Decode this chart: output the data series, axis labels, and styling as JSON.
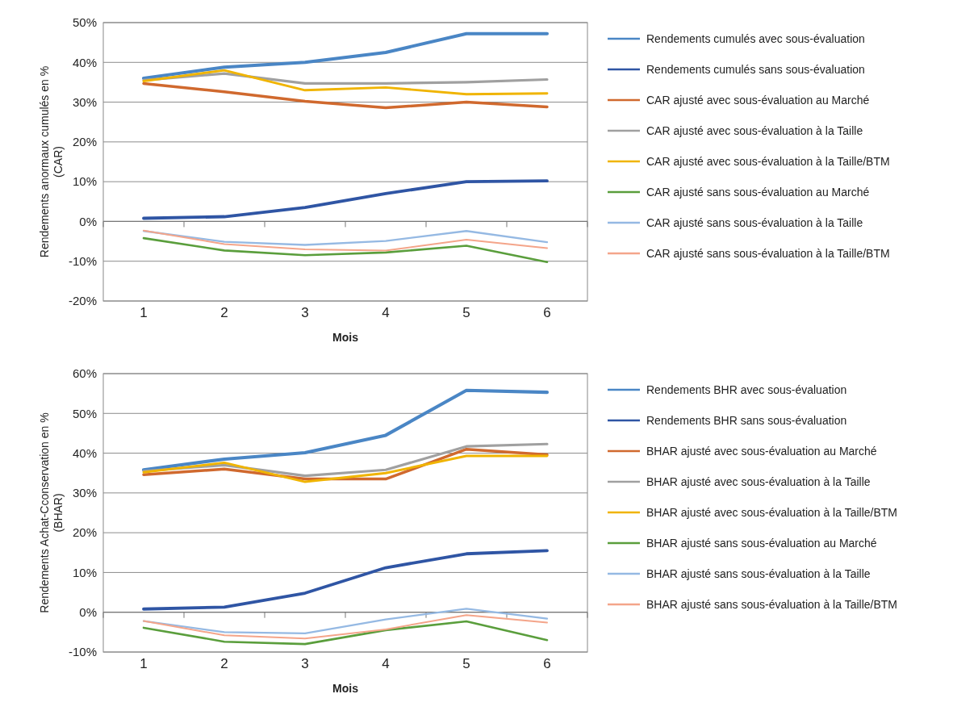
{
  "chart_data": [
    {
      "type": "line",
      "xlabel": "Mois",
      "ylabel": "Rendements anormaux cumulés  en %\n(CAR)",
      "categories": [
        "1",
        "2",
        "3",
        "4",
        "5",
        "6"
      ],
      "ylim": [
        -20,
        50
      ],
      "yticks": [
        {
          "value": -20,
          "label": "-20%"
        },
        {
          "value": -10,
          "label": "-10%"
        },
        {
          "value": 0,
          "label": "0%"
        },
        {
          "value": 10,
          "label": "10%"
        },
        {
          "value": 20,
          "label": "20%"
        },
        {
          "value": 30,
          "label": "30%"
        },
        {
          "value": 40,
          "label": "40%"
        },
        {
          "value": 50,
          "label": "50%"
        }
      ],
      "grid": "y",
      "legend": "right",
      "series": [
        {
          "name": "Rendements cumulés avec sous-évaluation",
          "color": "#4a86c5",
          "values": [
            36,
            38.8,
            40,
            42.5,
            47.2,
            47.2
          ]
        },
        {
          "name": "Rendements cumulés sans sous-évaluation",
          "color": "#2f55a4",
          "values": [
            0.8,
            1.2,
            3.5,
            7,
            10,
            10.2
          ]
        },
        {
          "name": "CAR ajusté avec sous-évaluation au Marché",
          "color": "#d0692e",
          "values": [
            34.7,
            32.6,
            30.2,
            28.6,
            30,
            28.8
          ]
        },
        {
          "name": "CAR ajusté avec sous-évaluation à la Taille",
          "color": "#a0a0a0",
          "values": [
            35.5,
            37.2,
            34.7,
            34.7,
            35,
            35.7
          ]
        },
        {
          "name": "CAR ajusté avec sous-évaluation à la Taille/BTM",
          "color": "#f0b400",
          "values": [
            35.3,
            38,
            33,
            33.7,
            32,
            32.2
          ]
        },
        {
          "name": "CAR ajusté sans sous-évaluation au Marché",
          "color": "#5a9e3c",
          "values": [
            -4.2,
            -7.3,
            -8.5,
            -7.8,
            -6.1,
            -10.2
          ]
        },
        {
          "name": "CAR ajusté sans sous-évaluation à la Taille",
          "color": "#95b9e3",
          "values": [
            -2.4,
            -5.1,
            -5.9,
            -4.9,
            -2.4,
            -5.2
          ]
        },
        {
          "name": "CAR ajusté sans sous-évaluation à la Taille/BTM",
          "color": "#f4a58a",
          "values": [
            -2.3,
            -5.7,
            -7,
            -7.3,
            -4.6,
            -6.7
          ]
        }
      ]
    },
    {
      "type": "line",
      "xlabel": "Mois",
      "ylabel": "Rendements Achat-Cconservation en %\n(BHAR)",
      "categories": [
        "1",
        "2",
        "3",
        "4",
        "5",
        "6"
      ],
      "ylim": [
        -10,
        60
      ],
      "yticks": [
        {
          "value": -10,
          "label": "-10%"
        },
        {
          "value": 0,
          "label": "0%"
        },
        {
          "value": 10,
          "label": "10%"
        },
        {
          "value": 20,
          "label": "20%"
        },
        {
          "value": 30,
          "label": "30%"
        },
        {
          "value": 40,
          "label": "40%"
        },
        {
          "value": 50,
          "label": "50%"
        },
        {
          "value": 60,
          "label": "60%"
        }
      ],
      "grid": "y",
      "legend": "right",
      "series": [
        {
          "name": "Rendements BHR avec sous-évaluation",
          "color": "#4a86c5",
          "values": [
            35.8,
            38.5,
            40.1,
            44.5,
            55.8,
            55.3
          ]
        },
        {
          "name": "Rendements BHR sans sous-évaluation",
          "color": "#2f55a4",
          "values": [
            0.8,
            1.3,
            4.8,
            11.2,
            14.7,
            15.5
          ]
        },
        {
          "name": "BHAR ajusté avec sous-évaluation au Marché",
          "color": "#d0692e",
          "values": [
            34.6,
            36,
            33.5,
            33.5,
            41,
            39.6
          ]
        },
        {
          "name": "BHAR ajusté avec sous-évaluation à la Taille",
          "color": "#a0a0a0",
          "values": [
            35.5,
            37,
            34.3,
            35.8,
            41.7,
            42.3
          ]
        },
        {
          "name": "BHAR ajusté avec sous-évaluation à la Taille/BTM",
          "color": "#f0b400",
          "values": [
            35.2,
            37.6,
            32.8,
            35,
            39.3,
            39.3
          ]
        },
        {
          "name": "BHAR ajusté sans sous-évaluation au Marché",
          "color": "#5a9e3c",
          "values": [
            -3.9,
            -7.4,
            -8,
            -4.5,
            -2.3,
            -7
          ]
        },
        {
          "name": "BHAR ajusté sans sous-évaluation à la Taille",
          "color": "#95b9e3",
          "values": [
            -2.2,
            -5,
            -5.3,
            -1.8,
            0.9,
            -1.6
          ]
        },
        {
          "name": "BHAR ajusté sans sous-évaluation à la Taille/BTM",
          "color": "#f4a58a",
          "values": [
            -2.2,
            -5.8,
            -6.6,
            -4.3,
            -0.7,
            -2.6
          ]
        }
      ]
    }
  ]
}
